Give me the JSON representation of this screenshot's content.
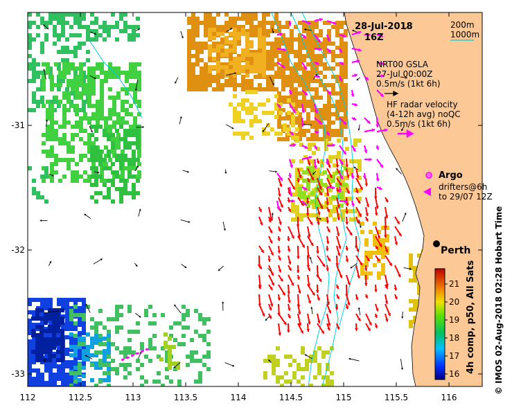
{
  "map": {
    "title_date": "28-Jul-2018",
    "title_time": "16Z",
    "x_ticks": [
      "112",
      "112.5",
      "113",
      "113.5",
      "114",
      "114.5",
      "115",
      "115.5",
      "116"
    ],
    "y_ticks": [
      "-31",
      "-32",
      "-33"
    ],
    "isobath_labels": [
      "200m",
      "1000m"
    ],
    "city": "Perth"
  },
  "legend": {
    "gsla_1": "NRT00 GSLA",
    "gsla_2": "27-Jul 00:00Z",
    "gsla_3": "0.5m/s (1kt 6h)",
    "radar_1": "HF radar velocity",
    "radar_2": "(4-12h avg) noQC",
    "radar_3": "0.5m/s (1kt 6h)",
    "argo": "Argo",
    "drifters_1": "drifters@6h",
    "drifters_2": "to 29/07 12Z"
  },
  "colorbar": {
    "ticks": [
      "21",
      "20",
      "19",
      "18",
      "17",
      "16"
    ],
    "title": "4h comp, p50, All Sats"
  },
  "side_caption": "© IMOS 02-Aug-2018 02:28 Hobart Time",
  "colors": {
    "land": "#fcc896",
    "vector_gsla": "#000000",
    "vector_radar": "#ff0000",
    "drifter": "#ff00ff",
    "isobath": "#00ccdd"
  }
}
